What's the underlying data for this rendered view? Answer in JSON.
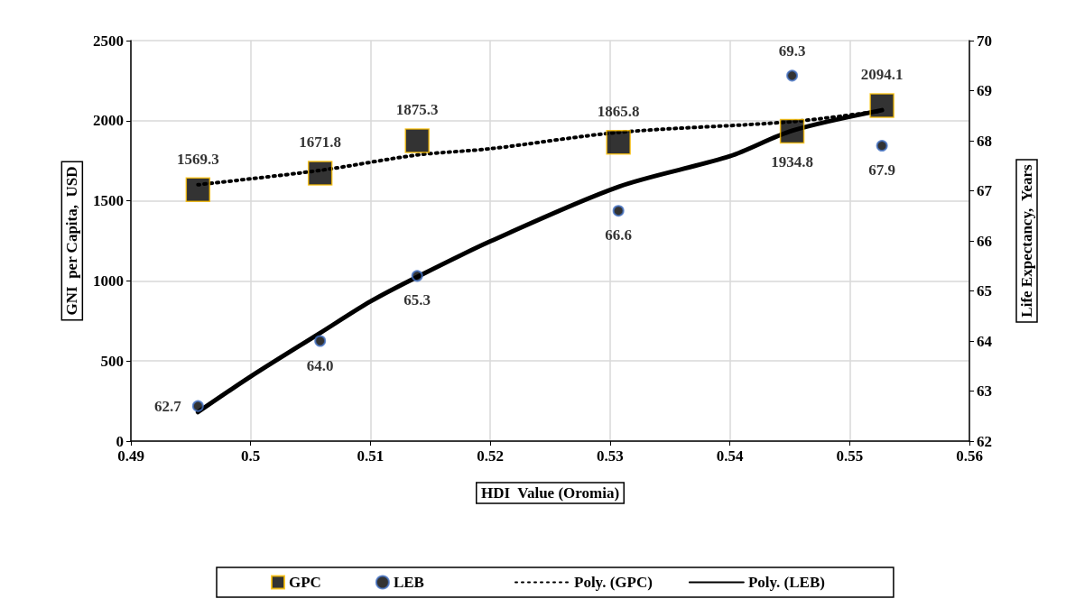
{
  "chart_data": {
    "type": "scatter",
    "xlabel": "HDI  Value (Oromia)",
    "ylabel": "GNI  per Capita,  USD",
    "y2label": "Life Expectancy,  Years",
    "x": [
      0.4956,
      0.5058,
      0.5139,
      0.5307,
      0.5452,
      0.5527
    ],
    "series": [
      {
        "name": "GPC",
        "marker": "square",
        "color": "#000000",
        "values": [
          1569.3,
          1671.8,
          1875.3,
          1865.8,
          1934.8,
          2094.1
        ],
        "value_labels": [
          "1569.3",
          "1671.8",
          "1875.3",
          "1865.8",
          "1934.8",
          "2094.1"
        ]
      },
      {
        "name": "LEB",
        "marker": "circle",
        "axis": "y2",
        "color": "#000000",
        "values": [
          62.7,
          64.0,
          65.3,
          66.6,
          69.3,
          67.9
        ],
        "value_labels": [
          "62.7",
          "64.0",
          "65.3",
          "66.6",
          "69.3",
          "67.9"
        ]
      },
      {
        "name": "Poly. (GPC)",
        "type": "line",
        "line_style": "dotted",
        "color": "#000000",
        "x": [
          0.4956,
          0.5058,
          0.5139,
          0.52,
          0.5307,
          0.5452,
          0.5527
        ],
        "values": [
          1600,
          1690,
          1786,
          1825,
          1927,
          1994,
          2062
        ]
      },
      {
        "name": "Poly. (LEB)",
        "type": "line",
        "line_style": "solid",
        "axis": "y2",
        "color": "#000000",
        "x": [
          0.4956,
          0.5,
          0.5058,
          0.51,
          0.5139,
          0.52,
          0.5307,
          0.54,
          0.5452,
          0.5527
        ],
        "values": [
          62.58,
          63.29,
          64.16,
          64.79,
          65.28,
          65.99,
          67.08,
          67.69,
          68.2,
          68.61
        ]
      }
    ],
    "xlim": [
      0.49,
      0.56
    ],
    "xticks": [
      0.49,
      0.5,
      0.51,
      0.52,
      0.53,
      0.54,
      0.55,
      0.56
    ],
    "ylim": [
      0,
      2500
    ],
    "yticks": [
      0,
      500,
      1000,
      1500,
      2000,
      2500
    ],
    "y2lim": [
      62,
      70
    ],
    "y2ticks": [
      62,
      63,
      64,
      65,
      66,
      67,
      68,
      69,
      70
    ],
    "grid": true,
    "legend": "bottom"
  }
}
